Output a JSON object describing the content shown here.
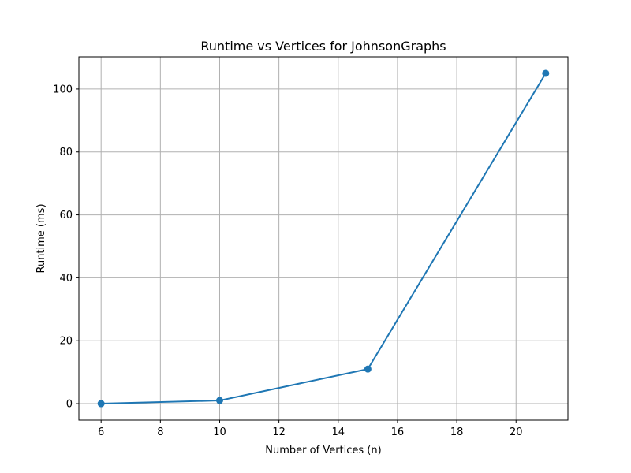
{
  "chart_data": {
    "type": "line",
    "title": "Runtime vs Vertices for JohnsonGraphs",
    "xlabel": "Number of Vertices (n)",
    "ylabel": "Runtime (ms)",
    "xlim": [
      5.25,
      21.75
    ],
    "ylim": [
      -5.25,
      110.25
    ],
    "xticks": [
      6,
      8,
      10,
      12,
      14,
      16,
      18,
      20
    ],
    "yticks": [
      0,
      20,
      40,
      60,
      80,
      100
    ],
    "grid": true,
    "legend": "none",
    "color": "#1f77b4",
    "series": [
      {
        "x": [
          6,
          10,
          15,
          21
        ],
        "y": [
          0,
          1,
          11,
          105
        ]
      }
    ]
  }
}
